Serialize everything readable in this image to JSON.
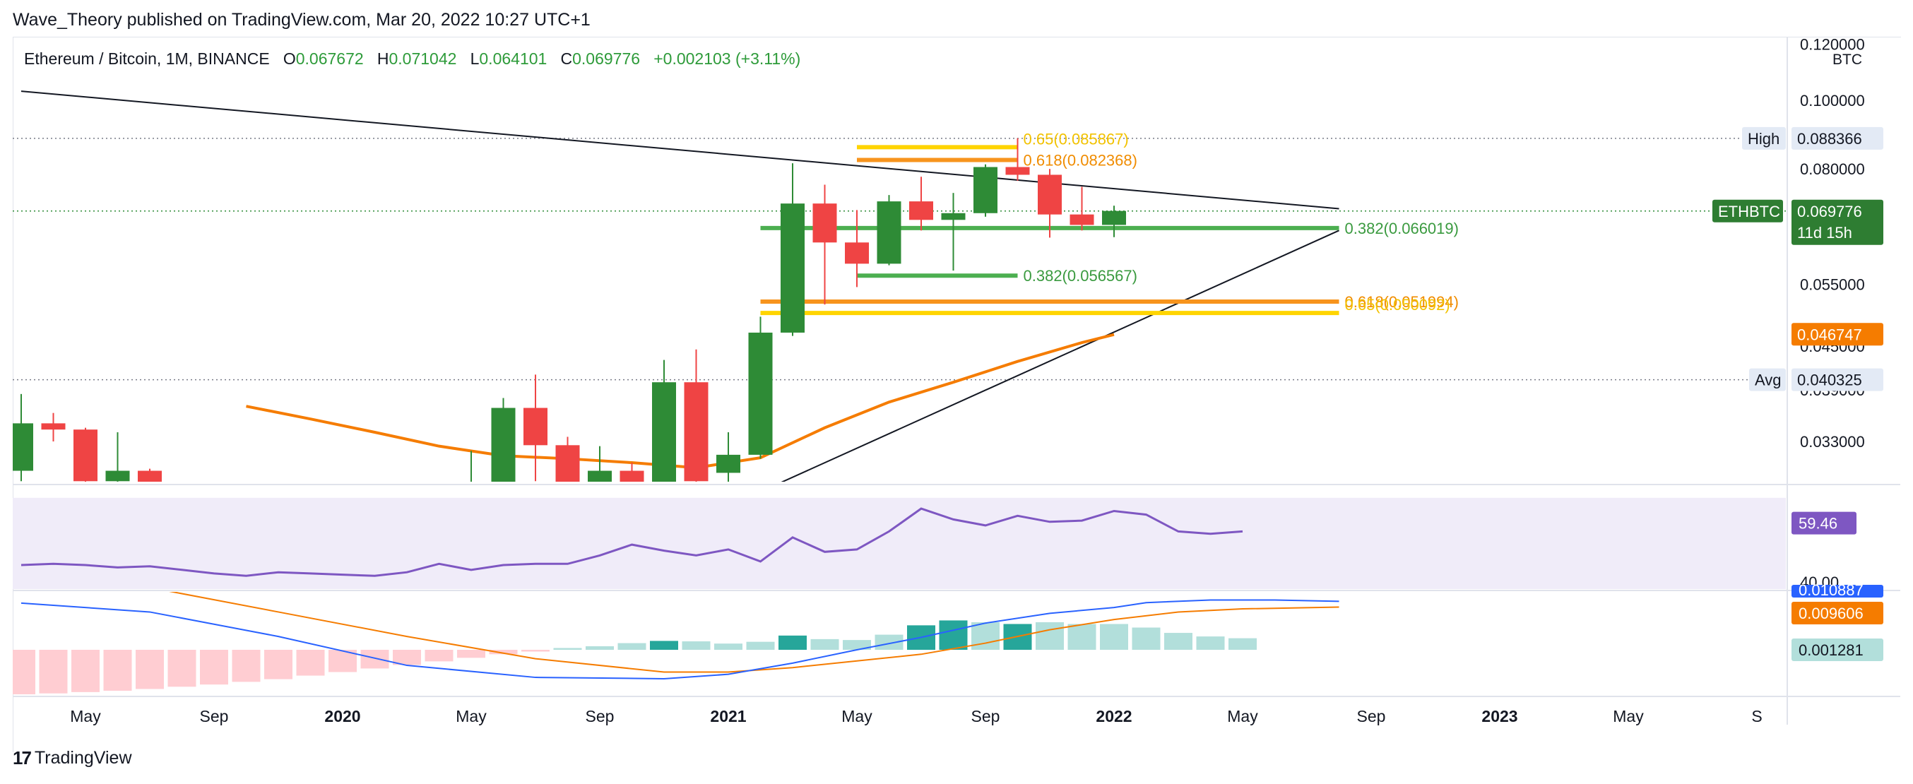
{
  "publisher": "Wave_Theory published on TradingView.com, Mar 20, 2022 10:27 UTC+1",
  "footer": {
    "brand": "TradingView"
  },
  "legend": {
    "symbol": "Ethereum / Bitcoin, 1M, BINANCE",
    "o_label": "O",
    "o": "0.067672",
    "h_label": "H",
    "h": "0.071042",
    "l_label": "L",
    "l": "0.064101",
    "c_label": "C",
    "c": "0.069776",
    "change": "+0.002103 (+3.11%)"
  },
  "colors": {
    "up": "#2e8b36",
    "down": "#ef4444",
    "ma": "#f57c00",
    "rsi": "#7e57c2",
    "rsi_band": "#f0ecf9",
    "macd": "#2962ff",
    "signal": "#f57c00",
    "fib_yellow": "#ffd400",
    "fib_orange": "#f7941d",
    "fib_green": "#4caf50"
  },
  "chart_data": [
    {
      "type": "candlestick",
      "scale": "log",
      "currency": "BTC",
      "price_axis_ticks": [
        "0.120000",
        "0.100000",
        "0.080000",
        "0.055000",
        "0.045000",
        "0.039000",
        "0.033000"
      ],
      "axis_badges": {
        "high": {
          "label": "High",
          "value": "0.088366"
        },
        "last": {
          "label": "ETHBTC",
          "value": "0.069776",
          "countdown": "11d 15h"
        },
        "ma": {
          "value": "0.046747"
        },
        "avg": {
          "label": "Avg",
          "value": "0.040325"
        }
      },
      "x_ticks": [
        "May",
        "Sep",
        "2020",
        "May",
        "Sep",
        "2021",
        "May",
        "Sep",
        "2022",
        "May",
        "Sep",
        "2023",
        "May",
        "S"
      ],
      "candles": [
        {
          "d": "2019-03",
          "o": 0.03,
          "h": 0.0385,
          "l": 0.029,
          "c": 0.035
        },
        {
          "d": "2019-04",
          "o": 0.035,
          "h": 0.0362,
          "l": 0.033,
          "c": 0.0343
        },
        {
          "d": "2019-05",
          "o": 0.0343,
          "h": 0.0345,
          "l": 0.0275,
          "c": 0.029
        },
        {
          "d": "2019-06",
          "o": 0.029,
          "h": 0.034,
          "l": 0.026,
          "c": 0.03
        },
        {
          "d": "2019-07",
          "o": 0.03,
          "h": 0.0302,
          "l": 0.02,
          "c": 0.021
        },
        {
          "d": "2020-05",
          "o": 0.024,
          "h": 0.032,
          "l": 0.0235,
          "c": 0.028
        },
        {
          "d": "2020-06",
          "o": 0.028,
          "h": 0.038,
          "l": 0.0275,
          "c": 0.0368
        },
        {
          "d": "2020-07",
          "o": 0.0368,
          "h": 0.041,
          "l": 0.029,
          "c": 0.0326
        },
        {
          "d": "2020-08",
          "o": 0.0326,
          "h": 0.0335,
          "l": 0.025,
          "c": 0.0265
        },
        {
          "d": "2020-09",
          "o": 0.0265,
          "h": 0.0325,
          "l": 0.0245,
          "c": 0.03
        },
        {
          "d": "2020-10",
          "o": 0.03,
          "h": 0.0308,
          "l": 0.023,
          "c": 0.024
        },
        {
          "d": "2020-11",
          "o": 0.024,
          "h": 0.043,
          "l": 0.0235,
          "c": 0.04
        },
        {
          "d": "2020-12",
          "o": 0.04,
          "h": 0.0445,
          "l": 0.0275,
          "c": 0.029
        },
        {
          "d": "2021-01",
          "o": 0.0298,
          "h": 0.034,
          "l": 0.027,
          "c": 0.0316
        },
        {
          "d": "2021-02",
          "o": 0.0316,
          "h": 0.0495,
          "l": 0.0312,
          "c": 0.047
        },
        {
          "d": "2021-03",
          "o": 0.047,
          "h": 0.0815,
          "l": 0.0465,
          "c": 0.0715
        },
        {
          "d": "2021-04",
          "o": 0.0715,
          "h": 0.076,
          "l": 0.0515,
          "c": 0.063
        },
        {
          "d": "2021-05",
          "o": 0.063,
          "h": 0.07,
          "l": 0.0545,
          "c": 0.0588
        },
        {
          "d": "2021-06",
          "o": 0.0588,
          "h": 0.0735,
          "l": 0.0585,
          "c": 0.072
        },
        {
          "d": "2021-07",
          "o": 0.072,
          "h": 0.078,
          "l": 0.0655,
          "c": 0.0678
        },
        {
          "d": "2021-08",
          "o": 0.0678,
          "h": 0.074,
          "l": 0.0575,
          "c": 0.0693
        },
        {
          "d": "2021-09",
          "o": 0.0693,
          "h": 0.0812,
          "l": 0.0685,
          "c": 0.0805
        },
        {
          "d": "2021-10",
          "o": 0.0805,
          "h": 0.0884,
          "l": 0.077,
          "c": 0.0785
        },
        {
          "d": "2021-11",
          "o": 0.0785,
          "h": 0.08,
          "l": 0.064,
          "c": 0.069
        },
        {
          "d": "2021-12",
          "o": 0.069,
          "h": 0.0755,
          "l": 0.0655,
          "c": 0.0667
        },
        {
          "d": "2022-01",
          "o": 0.0667,
          "h": 0.071,
          "l": 0.0641,
          "c": 0.0698
        }
      ],
      "ma_line": [
        {
          "d": "2019-10",
          "v": 0.037
        },
        {
          "d": "2019-12",
          "v": 0.0355
        },
        {
          "d": "2020-02",
          "v": 0.034
        },
        {
          "d": "2020-04",
          "v": 0.0325
        },
        {
          "d": "2020-06",
          "v": 0.0315
        },
        {
          "d": "2020-08",
          "v": 0.0312
        },
        {
          "d": "2020-10",
          "v": 0.0308
        },
        {
          "d": "2020-12",
          "v": 0.0303
        },
        {
          "d": "2021-02",
          "v": 0.0313
        },
        {
          "d": "2021-04",
          "v": 0.0345
        },
        {
          "d": "2021-06",
          "v": 0.0375
        },
        {
          "d": "2021-08",
          "v": 0.04
        },
        {
          "d": "2021-10",
          "v": 0.0428
        },
        {
          "d": "2021-12",
          "v": 0.0455
        },
        {
          "d": "2022-01",
          "v": 0.0467
        }
      ],
      "trendlines": [
        {
          "from": {
            "d": "2019-03",
            "v": 0.103
          },
          "to": {
            "d": "2022-08",
            "v": 0.0703
          }
        },
        {
          "from": {
            "d": "2020-12",
            "v": 0.0255
          },
          "to": {
            "d": "2022-08",
            "v": 0.0655
          }
        }
      ],
      "fib_levels": [
        {
          "label": "0.65(0.085867)",
          "value": 0.085867,
          "from": "2021-05",
          "to": "2021-10",
          "color": "fib_yellow"
        },
        {
          "label": "0.618(0.082368)",
          "value": 0.082368,
          "from": "2021-05",
          "to": "2021-10",
          "color": "fib_orange"
        },
        {
          "label": "0.382(0.066019)",
          "value": 0.066019,
          "from": "2021-02",
          "to": "2022-08",
          "color": "fib_green"
        },
        {
          "label": "0.382(0.056567)",
          "value": 0.056567,
          "from": "2021-05",
          "to": "2021-10",
          "color": "fib_green"
        },
        {
          "label": "0.618(0.051994)",
          "value": 0.051994,
          "from": "2021-02",
          "to": "2022-08",
          "color": "fib_orange"
        },
        {
          "label": "0.65(0.050092)",
          "value": 0.050092,
          "from": "2021-02",
          "to": "2022-08",
          "color": "fib_yellow"
        }
      ]
    },
    {
      "type": "line",
      "name": "RSI",
      "last_value": "59.46",
      "axis_tick": "40.00",
      "values": [
        {
          "d": "2019-03",
          "v": 42
        },
        {
          "d": "2019-04",
          "v": 42.5
        },
        {
          "d": "2019-05",
          "v": 42
        },
        {
          "d": "2019-06",
          "v": 41
        },
        {
          "d": "2019-07",
          "v": 41.5
        },
        {
          "d": "2019-08",
          "v": 40
        },
        {
          "d": "2019-09",
          "v": 38.5
        },
        {
          "d": "2019-10",
          "v": 37.5
        },
        {
          "d": "2019-11",
          "v": 39
        },
        {
          "d": "2019-12",
          "v": 38.5
        },
        {
          "d": "2020-01",
          "v": 38
        },
        {
          "d": "2020-02",
          "v": 37.5
        },
        {
          "d": "2020-03",
          "v": 39
        },
        {
          "d": "2020-04",
          "v": 42.5
        },
        {
          "d": "2020-05",
          "v": 40
        },
        {
          "d": "2020-06",
          "v": 42
        },
        {
          "d": "2020-07",
          "v": 42.5
        },
        {
          "d": "2020-08",
          "v": 42.5
        },
        {
          "d": "2020-09",
          "v": 46
        },
        {
          "d": "2020-10",
          "v": 50.5
        },
        {
          "d": "2020-11",
          "v": 48
        },
        {
          "d": "2020-12",
          "v": 46
        },
        {
          "d": "2021-01",
          "v": 48.5
        },
        {
          "d": "2021-02",
          "v": 43.5
        },
        {
          "d": "2021-03",
          "v": 53.5
        },
        {
          "d": "2021-04",
          "v": 47.5
        },
        {
          "d": "2021-05",
          "v": 48.5
        },
        {
          "d": "2021-06",
          "v": 56
        },
        {
          "d": "2021-07",
          "v": 65.5
        },
        {
          "d": "2021-08",
          "v": 61
        },
        {
          "d": "2021-09",
          "v": 58.5
        },
        {
          "d": "2021-10",
          "v": 62.5
        },
        {
          "d": "2021-11",
          "v": 60
        },
        {
          "d": "2021-12",
          "v": 60.5
        },
        {
          "d": "2022-01",
          "v": 64.5
        },
        {
          "d": "2022-02",
          "v": 63
        },
        {
          "d": "2022-03",
          "v": 56
        },
        {
          "d": "2022-04",
          "v": 55
        },
        {
          "d": "2022-05",
          "v": 56
        }
      ]
    },
    {
      "type": "histogram+line",
      "name": "MACD",
      "labels": {
        "macd": "0.010887",
        "signal": "0.009606",
        "hist": "0.001281"
      },
      "macd": [
        {
          "d": "2019-03",
          "v": 0.0105
        },
        {
          "d": "2019-07",
          "v": 0.0085
        },
        {
          "d": "2019-11",
          "v": 0.003
        },
        {
          "d": "2020-03",
          "v": -0.0035
        },
        {
          "d": "2020-07",
          "v": -0.0062
        },
        {
          "d": "2020-11",
          "v": -0.0065
        },
        {
          "d": "2021-01",
          "v": -0.0055
        },
        {
          "d": "2021-03",
          "v": -0.003
        },
        {
          "d": "2021-05",
          "v": 0.0
        },
        {
          "d": "2021-07",
          "v": 0.0028
        },
        {
          "d": "2021-09",
          "v": 0.006
        },
        {
          "d": "2021-11",
          "v": 0.0082
        },
        {
          "d": "2022-01",
          "v": 0.0095
        },
        {
          "d": "2022-02",
          "v": 0.0106
        },
        {
          "d": "2022-04",
          "v": 0.0112
        },
        {
          "d": "2022-06",
          "v": 0.0112
        },
        {
          "d": "2022-08",
          "v": 0.0109
        }
      ],
      "signal": [
        {
          "d": "2019-03",
          "v": 0.019
        },
        {
          "d": "2019-07",
          "v": 0.014
        },
        {
          "d": "2019-11",
          "v": 0.0085
        },
        {
          "d": "2020-03",
          "v": 0.003
        },
        {
          "d": "2020-07",
          "v": -0.002
        },
        {
          "d": "2020-11",
          "v": -0.005
        },
        {
          "d": "2021-01",
          "v": -0.005
        },
        {
          "d": "2021-03",
          "v": -0.004
        },
        {
          "d": "2021-05",
          "v": -0.0025
        },
        {
          "d": "2021-07",
          "v": -0.001
        },
        {
          "d": "2021-09",
          "v": 0.0015
        },
        {
          "d": "2021-11",
          "v": 0.0045
        },
        {
          "d": "2022-01",
          "v": 0.0068
        },
        {
          "d": "2022-03",
          "v": 0.0085
        },
        {
          "d": "2022-05",
          "v": 0.0092
        },
        {
          "d": "2022-08",
          "v": 0.0096
        }
      ],
      "hist": [
        {
          "d": "2019-03",
          "v": -0.01
        },
        {
          "d": "2019-04",
          "v": -0.0098
        },
        {
          "d": "2019-05",
          "v": -0.0095
        },
        {
          "d": "2019-06",
          "v": -0.0092
        },
        {
          "d": "2019-07",
          "v": -0.0088
        },
        {
          "d": "2019-08",
          "v": -0.0083
        },
        {
          "d": "2019-09",
          "v": -0.0078
        },
        {
          "d": "2019-10",
          "v": -0.0072
        },
        {
          "d": "2019-11",
          "v": -0.0066
        },
        {
          "d": "2019-12",
          "v": -0.0058
        },
        {
          "d": "2020-01",
          "v": -0.005
        },
        {
          "d": "2020-02",
          "v": -0.0042
        },
        {
          "d": "2020-03",
          "v": -0.0034
        },
        {
          "d": "2020-04",
          "v": -0.0026
        },
        {
          "d": "2020-05",
          "v": -0.0018
        },
        {
          "d": "2020-06",
          "v": -0.001
        },
        {
          "d": "2020-07",
          "v": -0.0004
        },
        {
          "d": "2020-08",
          "v": 0.0004
        },
        {
          "d": "2020-09",
          "v": 0.0008
        },
        {
          "d": "2020-10",
          "v": 0.0015
        },
        {
          "d": "2020-11",
          "v": 0.002
        },
        {
          "d": "2020-12",
          "v": 0.0019
        },
        {
          "d": "2021-01",
          "v": 0.0014
        },
        {
          "d": "2021-02",
          "v": 0.0018
        },
        {
          "d": "2021-03",
          "v": 0.0032
        },
        {
          "d": "2021-04",
          "v": 0.0024
        },
        {
          "d": "2021-05",
          "v": 0.0022
        },
        {
          "d": "2021-06",
          "v": 0.0034
        },
        {
          "d": "2021-07",
          "v": 0.0055
        },
        {
          "d": "2021-08",
          "v": 0.0066
        },
        {
          "d": "2021-09",
          "v": 0.0062
        },
        {
          "d": "2021-10",
          "v": 0.0058
        },
        {
          "d": "2021-11",
          "v": 0.0062
        },
        {
          "d": "2021-12",
          "v": 0.0058
        },
        {
          "d": "2022-01",
          "v": 0.0058
        },
        {
          "d": "2022-02",
          "v": 0.005
        },
        {
          "d": "2022-03",
          "v": 0.0038
        },
        {
          "d": "2022-04",
          "v": 0.003
        },
        {
          "d": "2022-05",
          "v": 0.0026
        }
      ]
    }
  ]
}
